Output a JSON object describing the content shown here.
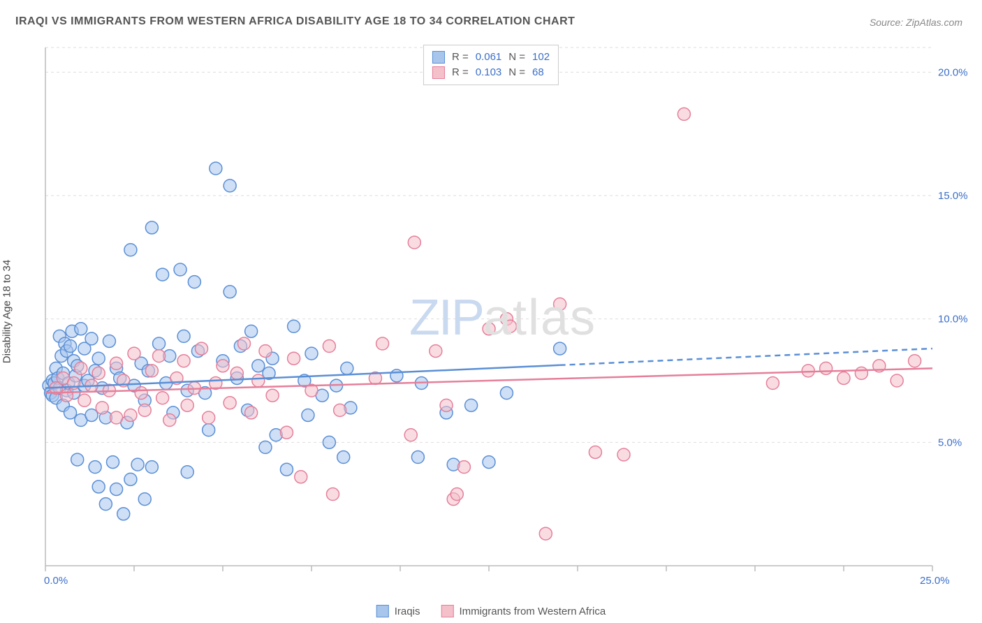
{
  "title": "IRAQI VS IMMIGRANTS FROM WESTERN AFRICA DISABILITY AGE 18 TO 34 CORRELATION CHART",
  "source": "Source: ZipAtlas.com",
  "y_axis_label": "Disability Age 18 to 34",
  "watermark": {
    "part1": "ZIP",
    "part2": "atlas"
  },
  "chart": {
    "type": "scatter",
    "background_color": "#ffffff",
    "grid_color": "#dddddd",
    "axis_color": "#bbbbbb",
    "tick_color": "#bbbbbb",
    "label_color": "#3b6fc9",
    "label_fontsize": 15,
    "xlim": [
      0,
      25
    ],
    "ylim": [
      0,
      21
    ],
    "x_ticks": [
      0,
      2.5,
      5,
      7.5,
      10,
      12.5,
      15,
      17.5,
      20,
      22.5,
      25
    ],
    "x_tick_labels": {
      "0": "0.0%",
      "25": "25.0%"
    },
    "y_gridlines": [
      5,
      10,
      15,
      20
    ],
    "y_gridline_labels": {
      "5": "5.0%",
      "10": "10.0%",
      "15": "15.0%",
      "20": "20.0%"
    },
    "marker_radius": 9,
    "marker_stroke_width": 1.5,
    "trend_line_width": 2.5,
    "series": [
      {
        "name": "Iraqis",
        "fill": "#a8c5ec",
        "stroke": "#5a8fd6",
        "fill_opacity": 0.55,
        "R": "0.061",
        "N": "102",
        "trend": {
          "y_at_x0": 7.2,
          "y_at_x25": 8.8,
          "solid_until_x": 14.5
        },
        "points": [
          [
            0.1,
            7.3
          ],
          [
            0.15,
            7.0
          ],
          [
            0.2,
            7.5
          ],
          [
            0.2,
            6.9
          ],
          [
            0.25,
            7.4
          ],
          [
            0.3,
            8.0
          ],
          [
            0.3,
            6.8
          ],
          [
            0.35,
            7.6
          ],
          [
            0.4,
            7.2
          ],
          [
            0.4,
            9.3
          ],
          [
            0.45,
            8.5
          ],
          [
            0.5,
            7.8
          ],
          [
            0.5,
            6.5
          ],
          [
            0.55,
            9.0
          ],
          [
            0.6,
            7.1
          ],
          [
            0.6,
            8.7
          ],
          [
            0.65,
            7.4
          ],
          [
            0.7,
            8.9
          ],
          [
            0.7,
            6.2
          ],
          [
            0.75,
            9.5
          ],
          [
            0.8,
            7.0
          ],
          [
            0.8,
            8.3
          ],
          [
            0.85,
            7.7
          ],
          [
            0.9,
            4.3
          ],
          [
            0.9,
            8.1
          ],
          [
            1.0,
            9.6
          ],
          [
            1.0,
            5.9
          ],
          [
            1.1,
            7.3
          ],
          [
            1.1,
            8.8
          ],
          [
            1.2,
            7.5
          ],
          [
            1.3,
            6.1
          ],
          [
            1.3,
            9.2
          ],
          [
            1.4,
            4.0
          ],
          [
            1.4,
            7.9
          ],
          [
            1.5,
            8.4
          ],
          [
            1.5,
            3.2
          ],
          [
            1.6,
            7.2
          ],
          [
            1.7,
            2.5
          ],
          [
            1.7,
            6.0
          ],
          [
            1.8,
            9.1
          ],
          [
            1.9,
            4.2
          ],
          [
            2.0,
            3.1
          ],
          [
            2.0,
            8.0
          ],
          [
            2.1,
            7.6
          ],
          [
            2.2,
            2.1
          ],
          [
            2.3,
            5.8
          ],
          [
            2.4,
            12.8
          ],
          [
            2.4,
            3.5
          ],
          [
            2.5,
            7.3
          ],
          [
            2.6,
            4.1
          ],
          [
            2.7,
            8.2
          ],
          [
            2.8,
            6.7
          ],
          [
            2.8,
            2.7
          ],
          [
            2.9,
            7.9
          ],
          [
            3.0,
            13.7
          ],
          [
            3.0,
            4.0
          ],
          [
            3.2,
            9.0
          ],
          [
            3.3,
            11.8
          ],
          [
            3.4,
            7.4
          ],
          [
            3.5,
            8.5
          ],
          [
            3.6,
            6.2
          ],
          [
            3.8,
            12.0
          ],
          [
            3.9,
            9.3
          ],
          [
            4.0,
            7.1
          ],
          [
            4.0,
            3.8
          ],
          [
            4.2,
            11.5
          ],
          [
            4.3,
            8.7
          ],
          [
            4.5,
            7.0
          ],
          [
            4.6,
            5.5
          ],
          [
            4.8,
            16.1
          ],
          [
            5.0,
            8.3
          ],
          [
            5.2,
            15.4
          ],
          [
            5.2,
            11.1
          ],
          [
            5.4,
            7.6
          ],
          [
            5.5,
            8.9
          ],
          [
            5.7,
            6.3
          ],
          [
            5.8,
            9.5
          ],
          [
            6.0,
            8.1
          ],
          [
            6.2,
            4.8
          ],
          [
            6.3,
            7.8
          ],
          [
            6.4,
            8.4
          ],
          [
            6.5,
            5.3
          ],
          [
            6.8,
            3.9
          ],
          [
            7.0,
            9.7
          ],
          [
            7.3,
            7.5
          ],
          [
            7.4,
            6.1
          ],
          [
            7.5,
            8.6
          ],
          [
            7.8,
            6.9
          ],
          [
            8.0,
            5.0
          ],
          [
            8.2,
            7.3
          ],
          [
            8.4,
            4.4
          ],
          [
            8.5,
            8.0
          ],
          [
            8.6,
            6.4
          ],
          [
            9.9,
            7.7
          ],
          [
            10.5,
            4.4
          ],
          [
            10.6,
            7.4
          ],
          [
            11.3,
            6.2
          ],
          [
            11.5,
            4.1
          ],
          [
            12.0,
            6.5
          ],
          [
            12.5,
            4.2
          ],
          [
            13.0,
            7.0
          ],
          [
            14.5,
            8.8
          ]
        ]
      },
      {
        "name": "Immigrants from Western Africa",
        "fill": "#f4c0ca",
        "stroke": "#e57f9a",
        "fill_opacity": 0.55,
        "R": "0.103",
        "N": "68",
        "trend": {
          "y_at_x0": 7.0,
          "y_at_x25": 8.0,
          "solid_until_x": 25
        },
        "points": [
          [
            0.3,
            7.2
          ],
          [
            0.5,
            7.6
          ],
          [
            0.6,
            6.9
          ],
          [
            0.8,
            7.4
          ],
          [
            1.0,
            8.0
          ],
          [
            1.1,
            6.7
          ],
          [
            1.3,
            7.3
          ],
          [
            1.5,
            7.8
          ],
          [
            1.6,
            6.4
          ],
          [
            1.8,
            7.1
          ],
          [
            2.0,
            8.2
          ],
          [
            2.0,
            6.0
          ],
          [
            2.2,
            7.5
          ],
          [
            2.4,
            6.1
          ],
          [
            2.5,
            8.6
          ],
          [
            2.7,
            7.0
          ],
          [
            2.8,
            6.3
          ],
          [
            3.0,
            7.9
          ],
          [
            3.2,
            8.5
          ],
          [
            3.3,
            6.8
          ],
          [
            3.5,
            5.9
          ],
          [
            3.7,
            7.6
          ],
          [
            3.9,
            8.3
          ],
          [
            4.0,
            6.5
          ],
          [
            4.2,
            7.2
          ],
          [
            4.4,
            8.8
          ],
          [
            4.6,
            6.0
          ],
          [
            4.8,
            7.4
          ],
          [
            5.0,
            8.1
          ],
          [
            5.2,
            6.6
          ],
          [
            5.4,
            7.8
          ],
          [
            5.6,
            9.0
          ],
          [
            5.8,
            6.2
          ],
          [
            6.0,
            7.5
          ],
          [
            6.2,
            8.7
          ],
          [
            6.4,
            6.9
          ],
          [
            6.8,
            5.4
          ],
          [
            7.0,
            8.4
          ],
          [
            7.2,
            3.6
          ],
          [
            7.5,
            7.1
          ],
          [
            8.0,
            8.9
          ],
          [
            8.1,
            2.9
          ],
          [
            8.3,
            6.3
          ],
          [
            9.3,
            7.6
          ],
          [
            9.5,
            9.0
          ],
          [
            10.3,
            5.3
          ],
          [
            10.4,
            13.1
          ],
          [
            11.0,
            8.7
          ],
          [
            11.3,
            6.5
          ],
          [
            11.5,
            2.7
          ],
          [
            11.6,
            2.9
          ],
          [
            11.8,
            4.0
          ],
          [
            12.5,
            9.6
          ],
          [
            13.0,
            10.0
          ],
          [
            13.1,
            9.7
          ],
          [
            14.1,
            1.3
          ],
          [
            14.5,
            10.6
          ],
          [
            15.5,
            4.6
          ],
          [
            16.3,
            4.5
          ],
          [
            18.0,
            18.3
          ],
          [
            22.0,
            8.0
          ],
          [
            23.0,
            7.8
          ],
          [
            23.5,
            8.1
          ],
          [
            24.0,
            7.5
          ],
          [
            24.5,
            8.3
          ],
          [
            22.5,
            7.6
          ],
          [
            21.5,
            7.9
          ],
          [
            20.5,
            7.4
          ]
        ]
      }
    ]
  },
  "corr_legend_labels": {
    "R": "R =",
    "N": "N ="
  },
  "series_legend_labels": [
    "Iraqis",
    "Immigrants from Western Africa"
  ]
}
